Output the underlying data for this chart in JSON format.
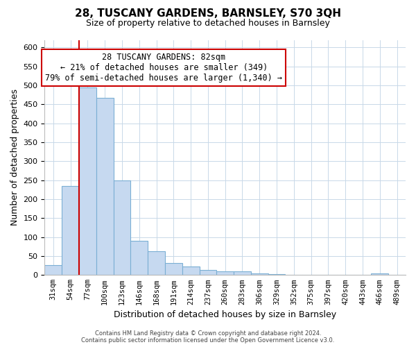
{
  "title": "28, TUSCANY GARDENS, BARNSLEY, S70 3QH",
  "subtitle": "Size of property relative to detached houses in Barnsley",
  "xlabel": "Distribution of detached houses by size in Barnsley",
  "ylabel": "Number of detached properties",
  "footer_line1": "Contains HM Land Registry data © Crown copyright and database right 2024.",
  "footer_line2": "Contains public sector information licensed under the Open Government Licence v3.0.",
  "bar_labels": [
    "31sqm",
    "54sqm",
    "77sqm",
    "100sqm",
    "123sqm",
    "146sqm",
    "168sqm",
    "191sqm",
    "214sqm",
    "237sqm",
    "260sqm",
    "283sqm",
    "306sqm",
    "329sqm",
    "352sqm",
    "375sqm",
    "397sqm",
    "420sqm",
    "443sqm",
    "466sqm",
    "489sqm"
  ],
  "bar_values": [
    27,
    235,
    495,
    468,
    250,
    90,
    63,
    31,
    23,
    14,
    10,
    9,
    5,
    2,
    1,
    1,
    0,
    0,
    0,
    5,
    0
  ],
  "bar_color": "#c6d9f0",
  "bar_edge_color": "#7bafd4",
  "grid_color": "#c8d8e8",
  "vline_color": "#cc0000",
  "annotation_line1": "28 TUSCANY GARDENS: 82sqm",
  "annotation_line2": "← 21% of detached houses are smaller (349)",
  "annotation_line3": "79% of semi-detached houses are larger (1,340) →",
  "annotation_box_color": "#ffffff",
  "annotation_box_edge": "#cc0000",
  "ylim": [
    0,
    620
  ],
  "yticks": [
    0,
    50,
    100,
    150,
    200,
    250,
    300,
    350,
    400,
    450,
    500,
    550,
    600
  ],
  "title_fontsize": 11,
  "subtitle_fontsize": 9,
  "ylabel_fontsize": 9,
  "xlabel_fontsize": 9,
  "annotation_fontsize": 8.5,
  "tick_fontsize": 8,
  "xtick_fontsize": 7.5
}
